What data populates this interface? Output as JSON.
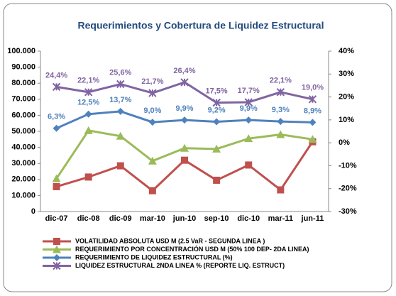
{
  "chart_data": {
    "type": "line",
    "title": "Requerimientos y Cobertura de Liquidez Estructural",
    "categories": [
      "dic-07",
      "dic-08",
      "dic-09",
      "mar-10",
      "jun-10",
      "sep-10",
      "dic-10",
      "mar-11",
      "jun-11"
    ],
    "series": [
      {
        "name": "VOLATILIDAD ABSOLUTA USD M (2.5 VaR - SEGUNDA LINEA )",
        "color": "#c0504d",
        "marker": "square",
        "values": [
          15500,
          21500,
          28500,
          13000,
          32000,
          19500,
          29000,
          13500,
          43500
        ]
      },
      {
        "name": "REQUERIMIENTO POR CONCENTRACIÓN USD M (50% 100 DEP- 2DA LINEA)",
        "color": "#9bbb59",
        "marker": "triangle",
        "values": [
          20500,
          50500,
          47000,
          31500,
          39500,
          39000,
          45500,
          48000,
          45000
        ]
      },
      {
        "name": "REQUERIMIENTO DE LIQUIDEZ ESTRUCTURAL (%)",
        "color": "#4f81bd",
        "marker": "diamond",
        "axis": "y2",
        "values": [
          6.3,
          12.5,
          13.7,
          9.0,
          9.9,
          9.2,
          9.9,
          9.3,
          8.9
        ],
        "value_labels": [
          "6,3%",
          "12,5%",
          "13,7%",
          "9,0%",
          "9,9%",
          "9,2%",
          "9,9%",
          "9,3%",
          "8,9%"
        ]
      },
      {
        "name": "LIQUIDEZ ESTRUCTURAL 2NDA LINEA % (REPORTE LIQ. ESTRUCT)",
        "color": "#8064a2",
        "marker": "x",
        "axis": "y2",
        "values": [
          24.4,
          22.1,
          25.6,
          21.7,
          26.4,
          17.5,
          17.7,
          22.1,
          19.0
        ],
        "value_labels": [
          "24,4%",
          "22,1%",
          "25,6%",
          "21,7%",
          "26,4%",
          "17,5%",
          "17,7%",
          "22,1%",
          "19,0%"
        ]
      }
    ],
    "ylim": [
      0,
      100000
    ],
    "yticks": [
      0,
      {
        "value": 10000,
        "label": "10.000"
      },
      {
        "value": 20000,
        "label": "20.000"
      },
      {
        "value": 30000,
        "label": "30.000"
      },
      {
        "value": 40000,
        "label": "40.000"
      },
      {
        "value": 50000,
        "label": "50.000"
      },
      {
        "value": 60000,
        "label": "60.000"
      },
      {
        "value": 70000,
        "label": "70.000"
      },
      {
        "value": 80000,
        "label": "80.000"
      },
      {
        "value": 90000,
        "label": "90.000"
      },
      {
        "value": 100000,
        "label": "100.000"
      }
    ],
    "y2lim": [
      -30,
      40
    ],
    "y2ticks": [
      {
        "value": -30,
        "label": "-30%"
      },
      {
        "value": -20,
        "label": "-20%"
      },
      {
        "value": -10,
        "label": "-10%"
      },
      {
        "value": 0,
        "label": "0%"
      },
      {
        "value": 10,
        "label": "10%"
      },
      {
        "value": 20,
        "label": "20%"
      },
      {
        "value": 30,
        "label": "30%"
      },
      {
        "value": 40,
        "label": "40%"
      }
    ],
    "title_color": "#1f497d",
    "legend": "bottom"
  }
}
